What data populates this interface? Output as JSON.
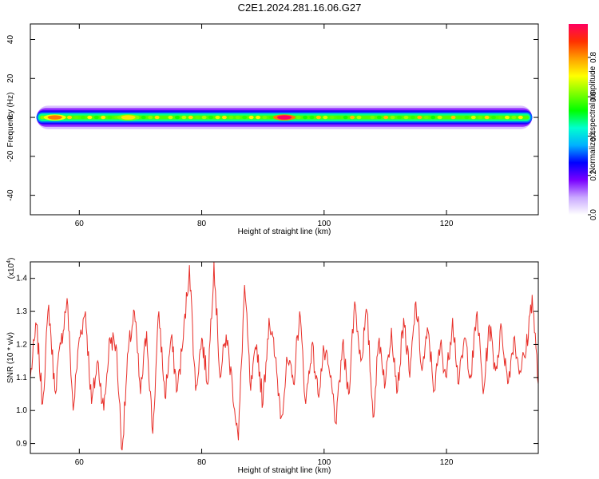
{
  "title": "C2E1.2024.281.16.06.G27",
  "chart_data": [
    {
      "type": "heatmap",
      "panel": "spectrogram",
      "title": "C2E1.2024.281.16.06.G27",
      "xlabel": "Height of straight line (km)",
      "ylabel": "Frequency (Hz)",
      "xlim": [
        52,
        135
      ],
      "ylim": [
        -50,
        48
      ],
      "xticks": [
        60,
        80,
        100,
        120
      ],
      "yticks": [
        -40,
        -20,
        0,
        20,
        40
      ],
      "band": {
        "center_hz": 0,
        "x_start": 53,
        "x_end": 134,
        "core_halfwidth_hz": 2,
        "halo_halfwidth_hz": 6
      },
      "hotspots": [
        {
          "x": 93.5,
          "amplitude": 1.0
        },
        {
          "x": 56,
          "amplitude": 0.85
        },
        {
          "x": 68,
          "amplitude": 0.75
        }
      ],
      "colorbar": {
        "label": "Normalized spectral amplitude",
        "range": [
          0.0,
          0.97
        ],
        "ticks": [
          0.0,
          0.2,
          0.4,
          0.6,
          0.8
        ],
        "tick_labels": [
          "0.0",
          "0.2",
          "0.4",
          "0.6",
          "0.8"
        ],
        "colors": [
          "#ffffff",
          "#c9a8ff",
          "#7a00ff",
          "#0000ff",
          "#00b0ff",
          "#00ffd0",
          "#00ff00",
          "#80ff00",
          "#ffff00",
          "#ffa000",
          "#ff3000",
          "#ff0060"
        ]
      },
      "grid": false
    },
    {
      "type": "line",
      "panel": "snr",
      "xlabel": "Height of straight line (km)",
      "ylabel": "SNR (10 * v/v)",
      "y_multiplier_label": "(x10",
      "y_multiplier_exp": "4",
      "y_multiplier_close": ")",
      "xlim": [
        52,
        135
      ],
      "ylim": [
        0.87,
        1.45
      ],
      "xticks": [
        60,
        80,
        100,
        120
      ],
      "yticks": [
        0.9,
        1.0,
        1.1,
        1.2,
        1.3,
        1.4
      ],
      "ytick_labels": [
        "0.9",
        "1.0",
        "1.1",
        "1.2",
        "1.3",
        "1.4"
      ],
      "color": "#e8302a",
      "x": [
        52,
        53,
        54,
        55,
        56,
        57,
        58,
        59,
        60,
        61,
        62,
        63,
        64,
        65,
        66,
        67,
        68,
        69,
        70,
        71,
        72,
        73,
        74,
        75,
        76,
        77,
        78,
        79,
        80,
        81,
        82,
        83,
        84,
        85,
        86,
        87,
        88,
        89,
        90,
        91,
        92,
        93,
        94,
        95,
        96,
        97,
        98,
        99,
        100,
        101,
        102,
        103,
        104,
        105,
        106,
        107,
        108,
        109,
        110,
        111,
        112,
        113,
        114,
        115,
        116,
        117,
        118,
        119,
        120,
        121,
        122,
        123,
        124,
        125,
        126,
        127,
        128,
        129,
        130,
        131,
        132,
        133,
        134,
        135
      ],
      "y": [
        1.1,
        1.26,
        1.02,
        1.32,
        1.06,
        1.2,
        1.34,
        1.0,
        1.22,
        1.3,
        1.02,
        1.15,
        1.0,
        1.22,
        1.2,
        0.88,
        1.18,
        1.3,
        1.05,
        1.24,
        0.93,
        1.3,
        1.04,
        1.22,
        1.06,
        1.22,
        1.44,
        1.06,
        1.22,
        1.08,
        1.45,
        1.1,
        1.23,
        1.08,
        0.91,
        1.38,
        1.06,
        1.2,
        1.02,
        1.28,
        1.16,
        0.98,
        1.15,
        1.08,
        1.3,
        1.02,
        1.2,
        1.05,
        1.18,
        1.1,
        0.96,
        1.2,
        1.05,
        1.33,
        1.15,
        1.3,
        0.98,
        1.22,
        1.08,
        1.25,
        1.06,
        1.28,
        1.1,
        1.33,
        1.12,
        1.24,
        1.06,
        1.2,
        1.1,
        1.28,
        1.08,
        1.22,
        1.1,
        1.3,
        1.05,
        1.26,
        1.12,
        1.25,
        1.08,
        1.22,
        1.12,
        1.18,
        1.35,
        1.08
      ],
      "grid": false
    }
  ]
}
